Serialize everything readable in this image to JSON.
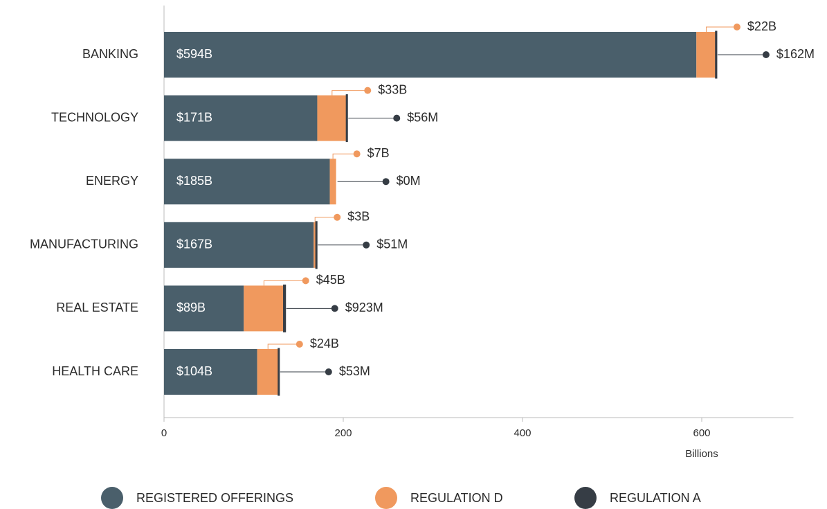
{
  "chart_data": {
    "type": "bar",
    "orientation": "horizontal",
    "stacked": true,
    "categories": [
      "BANKING",
      "TECHNOLOGY",
      "ENERGY",
      "MANUFACTURING",
      "REAL ESTATE",
      "HEALTH CARE"
    ],
    "series": [
      {
        "name": "REGISTERED OFFERINGS",
        "color": "#4a5f6b",
        "values": [
          594,
          171,
          185,
          167,
          89,
          104
        ],
        "value_labels": [
          "$594B",
          "$171B",
          "$185B",
          "$167B",
          "$89B",
          "$104B"
        ]
      },
      {
        "name": "REGULATION D",
        "color": "#f0995e",
        "values": [
          22,
          33,
          7,
          3,
          45,
          24
        ],
        "value_labels": [
          "$22B",
          "$33B",
          "$7B",
          "$3B",
          "$45B",
          "$24B"
        ]
      },
      {
        "name": "REGULATION A",
        "color": "#363d45",
        "values": [
          0.162,
          0.056,
          0,
          0.051,
          0.923,
          0.053
        ],
        "value_labels": [
          "$162M",
          "$56M",
          "$0M",
          "$51M",
          "$923M",
          "$53M"
        ]
      }
    ],
    "xlim": [
      0,
      700
    ],
    "xticks": [
      0,
      200,
      400,
      600
    ],
    "xlabel": "Billions"
  }
}
